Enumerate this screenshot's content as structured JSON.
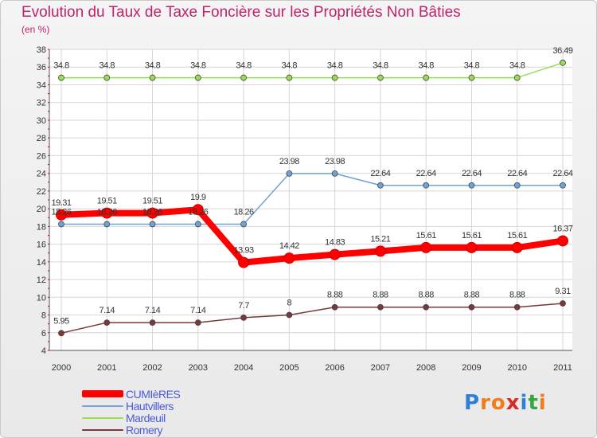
{
  "title": "Evolution du Taux de Taxe Foncière sur les Propriétés Non Bâties",
  "subtitle": "(en %)",
  "logo": {
    "chars": [
      "P",
      "r",
      "o",
      "x",
      "i",
      "t",
      "i"
    ],
    "colors": [
      "#2f7fd6",
      "#f07d1a",
      "#f07d1a",
      "#d42a2a",
      "#2f7fd6",
      "#36a544",
      "#f07d1a"
    ]
  },
  "chart_data": {
    "type": "line",
    "title": "Evolution du Taux de Taxe Foncière sur les Propriétés Non Bâties",
    "ylabel": "(en %)",
    "xlabel": "",
    "x": [
      "2000",
      "2001",
      "2002",
      "2003",
      "2004",
      "2005",
      "2006",
      "2007",
      "2008",
      "2009",
      "2010",
      "2011"
    ],
    "ylim": [
      4,
      38
    ],
    "yticks": [
      4,
      6,
      8,
      10,
      12,
      14,
      16,
      18,
      20,
      22,
      24,
      26,
      28,
      30,
      32,
      34,
      36,
      38
    ],
    "grid": true,
    "series": [
      {
        "name": "CUMIèRES",
        "color": "#ff0000",
        "values": [
          19.31,
          19.51,
          19.51,
          19.9,
          13.93,
          14.42,
          14.83,
          15.21,
          15.61,
          15.61,
          15.61,
          16.37
        ],
        "labels": [
          "19.31",
          "19.51",
          "19.51",
          "19.9",
          "13.93",
          "14.42",
          "14.83",
          "15.21",
          "15.61",
          "15.61",
          "15.61",
          "16.37"
        ]
      },
      {
        "name": "Hautvillers",
        "color": "#6fa3d8",
        "values": [
          18.26,
          18.26,
          18.26,
          18.26,
          18.26,
          23.98,
          23.98,
          22.64,
          22.64,
          22.64,
          22.64,
          22.64
        ],
        "labels": [
          "18.26",
          "18.26",
          "18.26",
          "18.26",
          "18.26",
          "23.98",
          "23.98",
          "22.64",
          "22.64",
          "22.64",
          "22.64",
          "22.64"
        ]
      },
      {
        "name": "Mardeuil",
        "color": "#99dd55",
        "values": [
          34.8,
          34.8,
          34.8,
          34.8,
          34.8,
          34.8,
          34.8,
          34.8,
          34.8,
          34.8,
          34.8,
          36.49
        ],
        "labels": [
          "34.8",
          "34.8",
          "34.8",
          "34.8",
          "34.8",
          "34.8",
          "34.8",
          "34.8",
          "34.8",
          "34.8",
          "34.8",
          "36.49"
        ]
      },
      {
        "name": "Romery",
        "color": "#7a3838",
        "values": [
          5.95,
          7.14,
          7.14,
          7.14,
          7.7,
          8,
          8.88,
          8.88,
          8.88,
          8.88,
          8.88,
          9.31
        ],
        "labels": [
          "5.95",
          "7.14",
          "7.14",
          "7.14",
          "7.7",
          "8",
          "8.88",
          "8.88",
          "8.88",
          "8.88",
          "8.88",
          "9.31"
        ]
      }
    ]
  }
}
